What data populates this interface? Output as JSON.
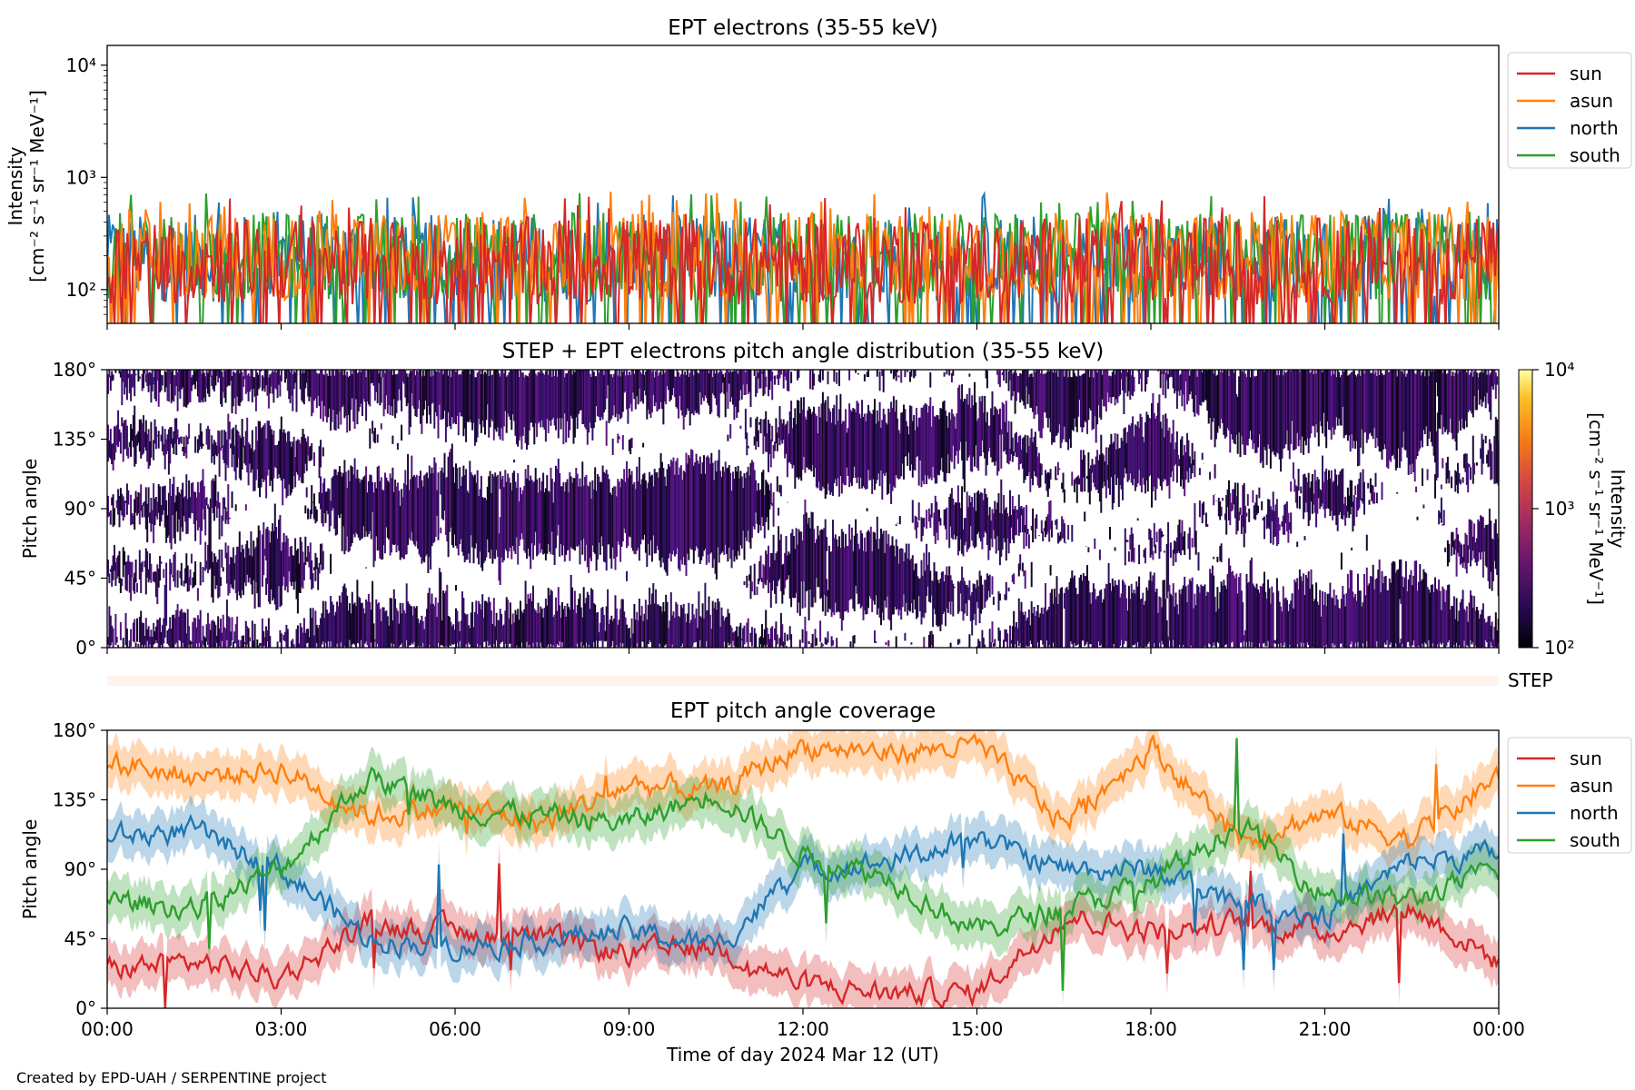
{
  "chart_data": [
    {
      "type": "line",
      "title": "EPT electrons (35-55 keV)",
      "ylabel_line1": "Intensity",
      "ylabel_line2": "[cm⁻² s⁻¹ sr⁻¹ MeV⁻¹]",
      "yscale": "log",
      "ylim": [
        50,
        15000
      ],
      "yticks": [
        "10²",
        "10³",
        "10⁴"
      ],
      "ytick_values": [
        100,
        1000,
        10000
      ],
      "xlim": [
        "00:00",
        "24:00"
      ],
      "legend": "upper-right outside",
      "series": [
        {
          "name": "sun",
          "color": "#d62728",
          "typical": 180,
          "peak": 700
        },
        {
          "name": "asun",
          "color": "#ff7f0e",
          "typical": 200,
          "peak": 750
        },
        {
          "name": "north",
          "color": "#1f77b4",
          "typical": 190,
          "peak": 700
        },
        {
          "name": "south",
          "color": "#2ca02c",
          "typical": 200,
          "peak": 1000
        }
      ]
    },
    {
      "type": "heatmap",
      "title": "STEP + EPT electrons pitch angle distribution (35-55 keV)",
      "ylabel": "Pitch angle",
      "ylim": [
        0,
        180
      ],
      "yticks": [
        "0°",
        "45°",
        "90°",
        "135°",
        "180°"
      ],
      "colorbar": {
        "label_line1": "Intensity",
        "label_line2": "[cm⁻² s⁻¹ sr⁻¹ MeV⁻¹]",
        "scale": "log",
        "range": [
          100,
          10000
        ],
        "ticks": [
          "10²",
          "10³",
          "10⁴"
        ]
      },
      "step_label": "STEP"
    },
    {
      "type": "line",
      "title": "EPT pitch angle coverage",
      "ylabel": "Pitch angle",
      "ylim": [
        0,
        180
      ],
      "yticks": [
        "0°",
        "45°",
        "90°",
        "135°",
        "180°"
      ],
      "xlabel": "Time of day 2024 Mar 12 (UT)",
      "xticks": [
        "00:00",
        "03:00",
        "06:00",
        "09:00",
        "12:00",
        "15:00",
        "18:00",
        "21:00",
        "00:00"
      ],
      "legend": "upper-right outside",
      "x_hours": [
        0,
        1.5,
        3,
        4.5,
        6,
        7.5,
        9,
        10.5,
        12,
        13.5,
        15,
        16.5,
        18,
        19.5,
        21,
        22.5,
        24
      ],
      "series": [
        {
          "name": "sun",
          "color": "#d62728",
          "values": [
            25,
            30,
            20,
            55,
            50,
            45,
            35,
            40,
            15,
            10,
            10,
            60,
            50,
            55,
            50,
            65,
            30
          ]
        },
        {
          "name": "asun",
          "color": "#ff7f0e",
          "values": [
            160,
            150,
            155,
            125,
            130,
            120,
            145,
            140,
            170,
            165,
            170,
            120,
            170,
            110,
            125,
            110,
            150
          ]
        },
        {
          "name": "north",
          "color": "#1f77b4",
          "values": [
            110,
            115,
            90,
            45,
            40,
            45,
            50,
            40,
            90,
            95,
            110,
            90,
            90,
            70,
            60,
            95,
            100
          ]
        },
        {
          "name": "south",
          "color": "#2ca02c",
          "values": [
            70,
            65,
            90,
            150,
            130,
            125,
            120,
            140,
            100,
            85,
            50,
            65,
            80,
            120,
            75,
            70,
            90
          ]
        }
      ]
    }
  ],
  "footer": {
    "credit": "Created by EPD-UAH / SERPENTINE project"
  }
}
